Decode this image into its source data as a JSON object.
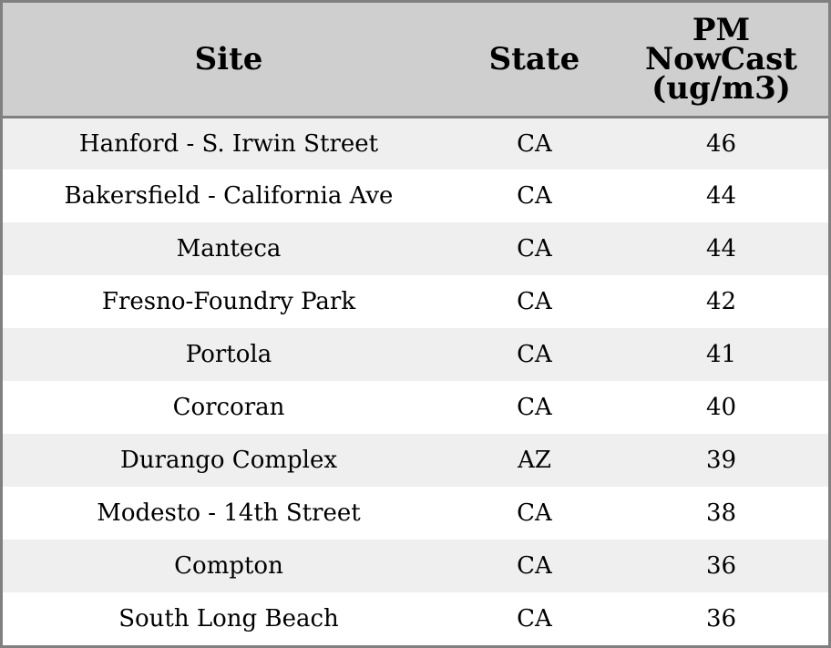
{
  "chart_data": {
    "type": "table",
    "columns": [
      "Site",
      "State",
      "PM NowCast (ug/m3)"
    ],
    "header_lines": {
      "site": [
        "Site"
      ],
      "state": [
        "State"
      ],
      "pm": [
        "PM",
        "NowCast",
        "(ug/m3)"
      ]
    },
    "rows": [
      [
        "Hanford - S. Irwin Street",
        "CA",
        "46"
      ],
      [
        "Bakersfield - California Ave",
        "CA",
        "44"
      ],
      [
        "Manteca",
        "CA",
        "44"
      ],
      [
        "Fresno-Foundry Park",
        "CA",
        "42"
      ],
      [
        "Portola",
        "CA",
        "41"
      ],
      [
        "Corcoran",
        "CA",
        "40"
      ],
      [
        "Durango Complex",
        "AZ",
        "39"
      ],
      [
        "Modesto - 14th Street",
        "CA",
        "38"
      ],
      [
        "Compton",
        "CA",
        "36"
      ],
      [
        "South Long Beach",
        "CA",
        "36"
      ]
    ],
    "header_background": "#cfcfcf",
    "row_stripe_color": "#efefef",
    "border_color": "#808080"
  }
}
